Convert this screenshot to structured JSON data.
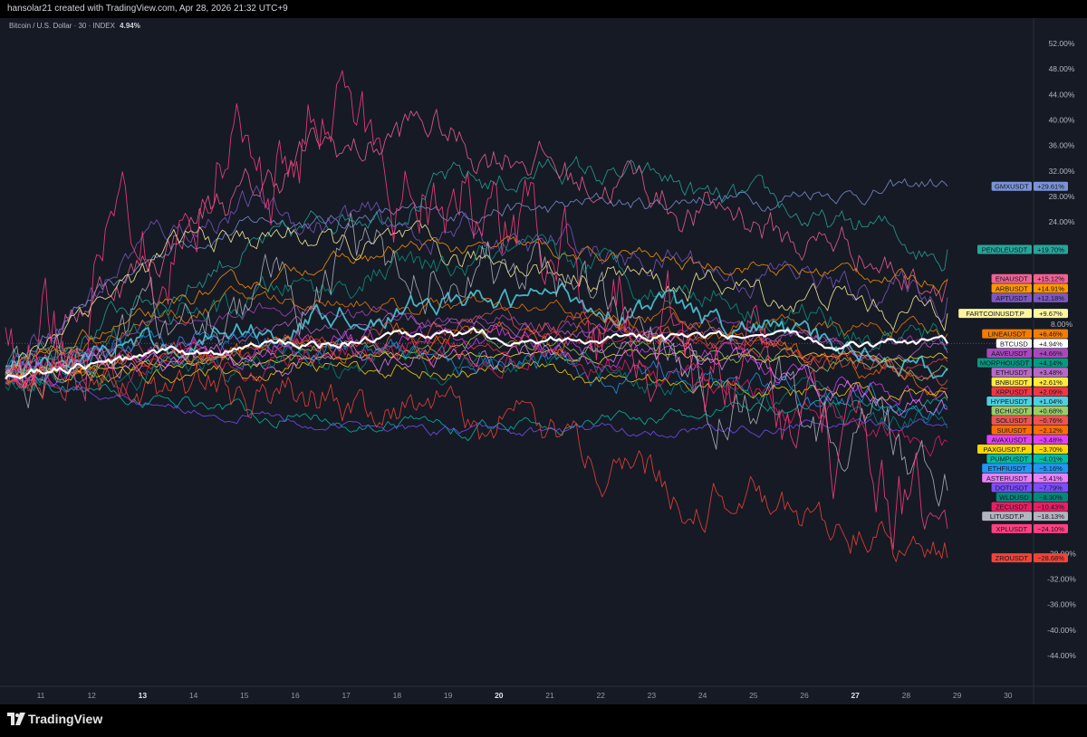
{
  "header": {
    "credit": "hansolar21 created with TradingView.com, Apr 28, 2026 21:32 UTC+9",
    "symbol": "Bitcoin / U.S. Dollar · 30 · INDEX",
    "symbol_change": "4.94%"
  },
  "footer": {
    "brand": "TradingView"
  },
  "chart_data": {
    "type": "line",
    "y_unit": "%",
    "ylim": [
      -46,
      54
    ],
    "y_ticks": [
      "52.00%",
      "48.00%",
      "44.00%",
      "40.00%",
      "36.00%",
      "32.00%",
      "28.00%",
      "24.00%",
      "8.00%",
      "-28.00%",
      "-32.00%",
      "-36.00%",
      "-40.00%",
      "-44.00%"
    ],
    "x_ticks": [
      "11",
      "12",
      "13",
      "14",
      "15",
      "16",
      "17",
      "18",
      "19",
      "20",
      "21",
      "22",
      "23",
      "24",
      "25",
      "26",
      "27",
      "28",
      "29",
      "30"
    ],
    "x_ticks_bold": [
      "13",
      "20",
      "27"
    ],
    "price_tag_extra": "27:39",
    "series": [
      {
        "name": "GMXUSDT",
        "label": "+29.61%",
        "value": 29.61,
        "color": "#7b93d6",
        "peak": 24
      },
      {
        "name": "PENDLEUSDT",
        "label": "+19.70%",
        "value": 19.7,
        "color": "#26a69a",
        "peak": 32
      },
      {
        "name": "ENAUSDT",
        "label": "+15.12%",
        "value": 15.12,
        "color": "#f06292",
        "peak": 38
      },
      {
        "name": "ARBUSDT",
        "label": "+14.91%",
        "value": 14.91,
        "color": "#ff9800",
        "peak": 20
      },
      {
        "name": "APTUSDT",
        "label": "+12.18%",
        "value": 12.18,
        "color": "#7e57c2",
        "peak": 26
      },
      {
        "name": "FARTCOINUSDT.P",
        "label": "+9.67%",
        "value": 9.67,
        "color": "#fff59d",
        "peak": 22
      },
      {
        "name": "LINEAUSDT",
        "label": "+6.46%",
        "value": 6.46,
        "color": "#f57c00",
        "peak": 12
      },
      {
        "name": "BTCUSD",
        "label": "+4.94%",
        "value": 4.94,
        "color": "#ffffff",
        "peak": 6
      },
      {
        "name": "AAVEUSDT",
        "label": "+4.66%",
        "value": 4.66,
        "color": "#ab47bc",
        "peak": 10
      },
      {
        "name": "MORPHOUSDT",
        "label": "+4.14%",
        "value": 4.14,
        "color": "#089981",
        "peak": 18
      },
      {
        "name": "ETHUSDT",
        "label": "+3.48%",
        "value": 3.48,
        "color": "#ba68c8",
        "peak": 8
      },
      {
        "name": "BNBUSDT",
        "label": "+2.61%",
        "value": 2.61,
        "color": "#ffeb3b",
        "peak": 3
      },
      {
        "name": "XRPUSDT",
        "label": "+2.09%",
        "value": 2.09,
        "color": "#f23645",
        "peak": 6
      },
      {
        "name": "HYPEUSDT",
        "label": "+1.04%",
        "value": 1.04,
        "color": "#4dd0e1",
        "peak": 12
      },
      {
        "name": "BCHUSDT",
        "label": "+0.68%",
        "value": 0.68,
        "color": "#9ccc65",
        "peak": 5
      },
      {
        "name": "SOLUSDT",
        "label": "−0.76%",
        "value": -0.76,
        "color": "#ef5350",
        "peak": 8
      },
      {
        "name": "SUIUSDT",
        "label": "−2.12%",
        "value": -2.12,
        "color": "#ff6d00",
        "peak": 7
      },
      {
        "name": "AVAXUSDT",
        "label": "−3.48%",
        "value": -3.48,
        "color": "#e040fb",
        "peak": 6
      },
      {
        "name": "PAXGUSDT.P",
        "label": "−3.70%",
        "value": -3.7,
        "color": "#ffd600",
        "peak": 1
      },
      {
        "name": "PUMPUSDT",
        "label": "−4.01%",
        "value": -4.01,
        "color": "#00bfa5",
        "peak": -8
      },
      {
        "name": "ETHFIUSDT",
        "label": "−5.16%",
        "value": -5.16,
        "color": "#2196f3",
        "peak": 6
      },
      {
        "name": "ASTERUSDT",
        "label": "−5.41%",
        "value": -5.41,
        "color": "#ea80fc",
        "peak": 4
      },
      {
        "name": "DOTUSDT",
        "label": "−7.79%",
        "value": -7.79,
        "color": "#7c4dff",
        "peak": -9
      },
      {
        "name": "WLDUSD",
        "label": "−8.30%",
        "value": -8.3,
        "color": "#00897b",
        "peak": 2
      },
      {
        "name": "ZECUSDT",
        "label": "−10.43%",
        "value": -10.43,
        "color": "#e91e63",
        "peak": 3
      },
      {
        "name": "LITUSDT.P",
        "label": "−18.13%",
        "value": -18.13,
        "color": "#b2b5be",
        "peak": 18
      },
      {
        "name": "XPLUSDT",
        "label": "−24.10%",
        "value": -24.1,
        "color": "#ff4081",
        "peak": 40
      },
      {
        "name": "ZROUSDT",
        "label": "−28.68%",
        "value": -28.68,
        "color": "#f44336",
        "peak": -4
      }
    ]
  }
}
